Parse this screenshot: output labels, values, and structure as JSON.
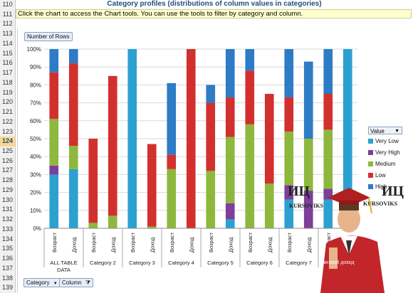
{
  "sheet": {
    "row_numbers": [
      "110",
      "111",
      "112",
      "113",
      "114",
      "115",
      "116",
      "117",
      "118",
      "119",
      "120",
      "121",
      "122",
      "123",
      "124",
      "125",
      "126",
      "127",
      "128",
      "129",
      "130",
      "131",
      "132",
      "133",
      "134",
      "135",
      "136",
      "137",
      "138",
      "139"
    ],
    "selected_row": "124",
    "title": "Category profiles (distributions of column values in categories)",
    "note": "Click the chart to access the Chart tools. You can use the tools to filter by category and column."
  },
  "chart_ui": {
    "number_of_rows_label": "Number of Rows",
    "category_filter_label": "Category",
    "column_filter_label": "Column",
    "legend_filter_label": "Value",
    "filter_icon": "funnel-icon",
    "dropdown_icon": "chevron-down-icon",
    "clear_filter_icon": "funnel-clear-icon"
  },
  "watermark": {
    "logo_left_line1": "ИЦ",
    "logo_left_line2": "KURSOVIKS",
    "logo_right_line1": "ИЦ",
    "logo_right_line2": "KURSOVIKS",
    "bottom_text": "низкий доход"
  },
  "chart_data": {
    "type": "bar",
    "stacked": "percent",
    "ylim": [
      0,
      100
    ],
    "ytick_labels": [
      "0%",
      "10%",
      "20%",
      "30%",
      "40%",
      "50%",
      "60%",
      "70%",
      "80%",
      "90%",
      "100%"
    ],
    "groups": [
      {
        "label": "ALL TABLE DATA",
        "bars": [
          "Возраст",
          "Доход"
        ]
      },
      {
        "label": "Category 2",
        "bars": [
          "Возраст",
          "Доход"
        ]
      },
      {
        "label": "Category 3",
        "bars": [
          "Возраст",
          "Доход"
        ]
      },
      {
        "label": "Category 4",
        "bars": [
          "Возраст",
          "Доход"
        ]
      },
      {
        "label": "Category 5",
        "bars": [
          "Возраст",
          "Доход"
        ]
      },
      {
        "label": "Category 6",
        "bars": [
          "Возраст",
          "Доход"
        ]
      },
      {
        "label": "Category 7",
        "bars": [
          "Возраст",
          "Доход"
        ]
      },
      {
        "label": "",
        "bars": [
          "Возраст",
          "Доход"
        ]
      }
    ],
    "series": [
      {
        "name": "Very Low",
        "color": "#2ca1cf",
        "values": [
          30,
          33,
          0,
          0,
          100,
          0,
          0,
          0,
          0,
          5,
          0,
          0,
          16,
          0,
          16,
          100
        ]
      },
      {
        "name": "Very High",
        "color": "#7d3f98",
        "values": [
          5,
          0,
          0,
          0,
          0,
          0,
          0,
          0,
          0,
          9,
          0,
          0,
          8,
          21,
          6,
          0
        ]
      },
      {
        "name": "Medium",
        "color": "#8db83d",
        "values": [
          26,
          13,
          3,
          7,
          0,
          1,
          33,
          0,
          32,
          37,
          58,
          25,
          30,
          29,
          33,
          0
        ]
      },
      {
        "name": "Low",
        "color": "#d2302e",
        "values": [
          26,
          46,
          47,
          78,
          0,
          46,
          8,
          100,
          38,
          22,
          30,
          50,
          19,
          0,
          20,
          0
        ]
      },
      {
        "name": "High",
        "color": "#2e7bc6",
        "values": [
          13,
          8,
          0,
          0,
          0,
          0,
          40,
          0,
          10,
          27,
          12,
          0,
          27,
          43,
          25,
          0
        ]
      }
    ]
  }
}
